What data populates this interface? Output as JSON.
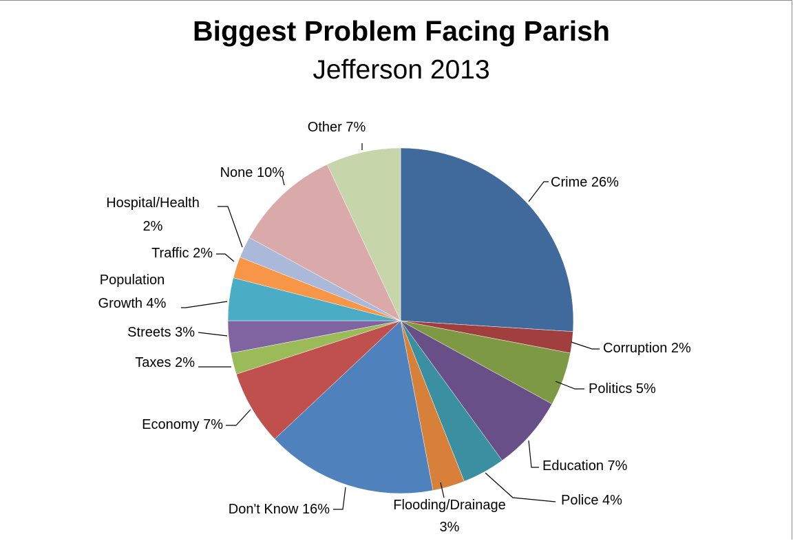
{
  "chart_data": {
    "type": "pie",
    "title": "Biggest Problem Facing Parish",
    "subtitle": "Jefferson 2013",
    "slices": [
      {
        "label": "Crime",
        "value": 26,
        "value_text": "26%",
        "color": "#416a9c"
      },
      {
        "label": "Corruption",
        "value": 2,
        "value_text": "2%",
        "color": "#a03f3d"
      },
      {
        "label": "Politics",
        "value": 5,
        "value_text": "5%",
        "color": "#7e9944"
      },
      {
        "label": "Education",
        "value": 7,
        "value_text": "7%",
        "color": "#694f87"
      },
      {
        "label": "Police",
        "value": 4,
        "value_text": "4%",
        "color": "#3a8fa1"
      },
      {
        "label": "Flooding/Drainage",
        "value": 3,
        "value_text": "3%",
        "color": "#d6803a"
      },
      {
        "label": "Don't Know",
        "value": 16,
        "value_text": "16%",
        "color": "#4f81bd"
      },
      {
        "label": "Economy",
        "value": 7,
        "value_text": "7%",
        "color": "#c0504d"
      },
      {
        "label": "Taxes",
        "value": 2,
        "value_text": "2%",
        "color": "#9bbb59"
      },
      {
        "label": "Streets",
        "value": 3,
        "value_text": "3%",
        "color": "#8064a2"
      },
      {
        "label": "Population Growth",
        "value": 4,
        "value_text": "4%",
        "color": "#4bacc6"
      },
      {
        "label": "Traffic",
        "value": 2,
        "value_text": "2%",
        "color": "#f79646"
      },
      {
        "label": "Hospital/Health",
        "value": 2,
        "value_text": "2%",
        "color": "#aab9d9"
      },
      {
        "label": "None",
        "value": 10,
        "value_text": "10%",
        "color": "#d9aaa9"
      },
      {
        "label": "Other",
        "value": 7,
        "value_text": "7%",
        "color": "#c6d5aa"
      }
    ],
    "start": "12 o'clock",
    "direction": "clockwise",
    "legend": "none"
  }
}
